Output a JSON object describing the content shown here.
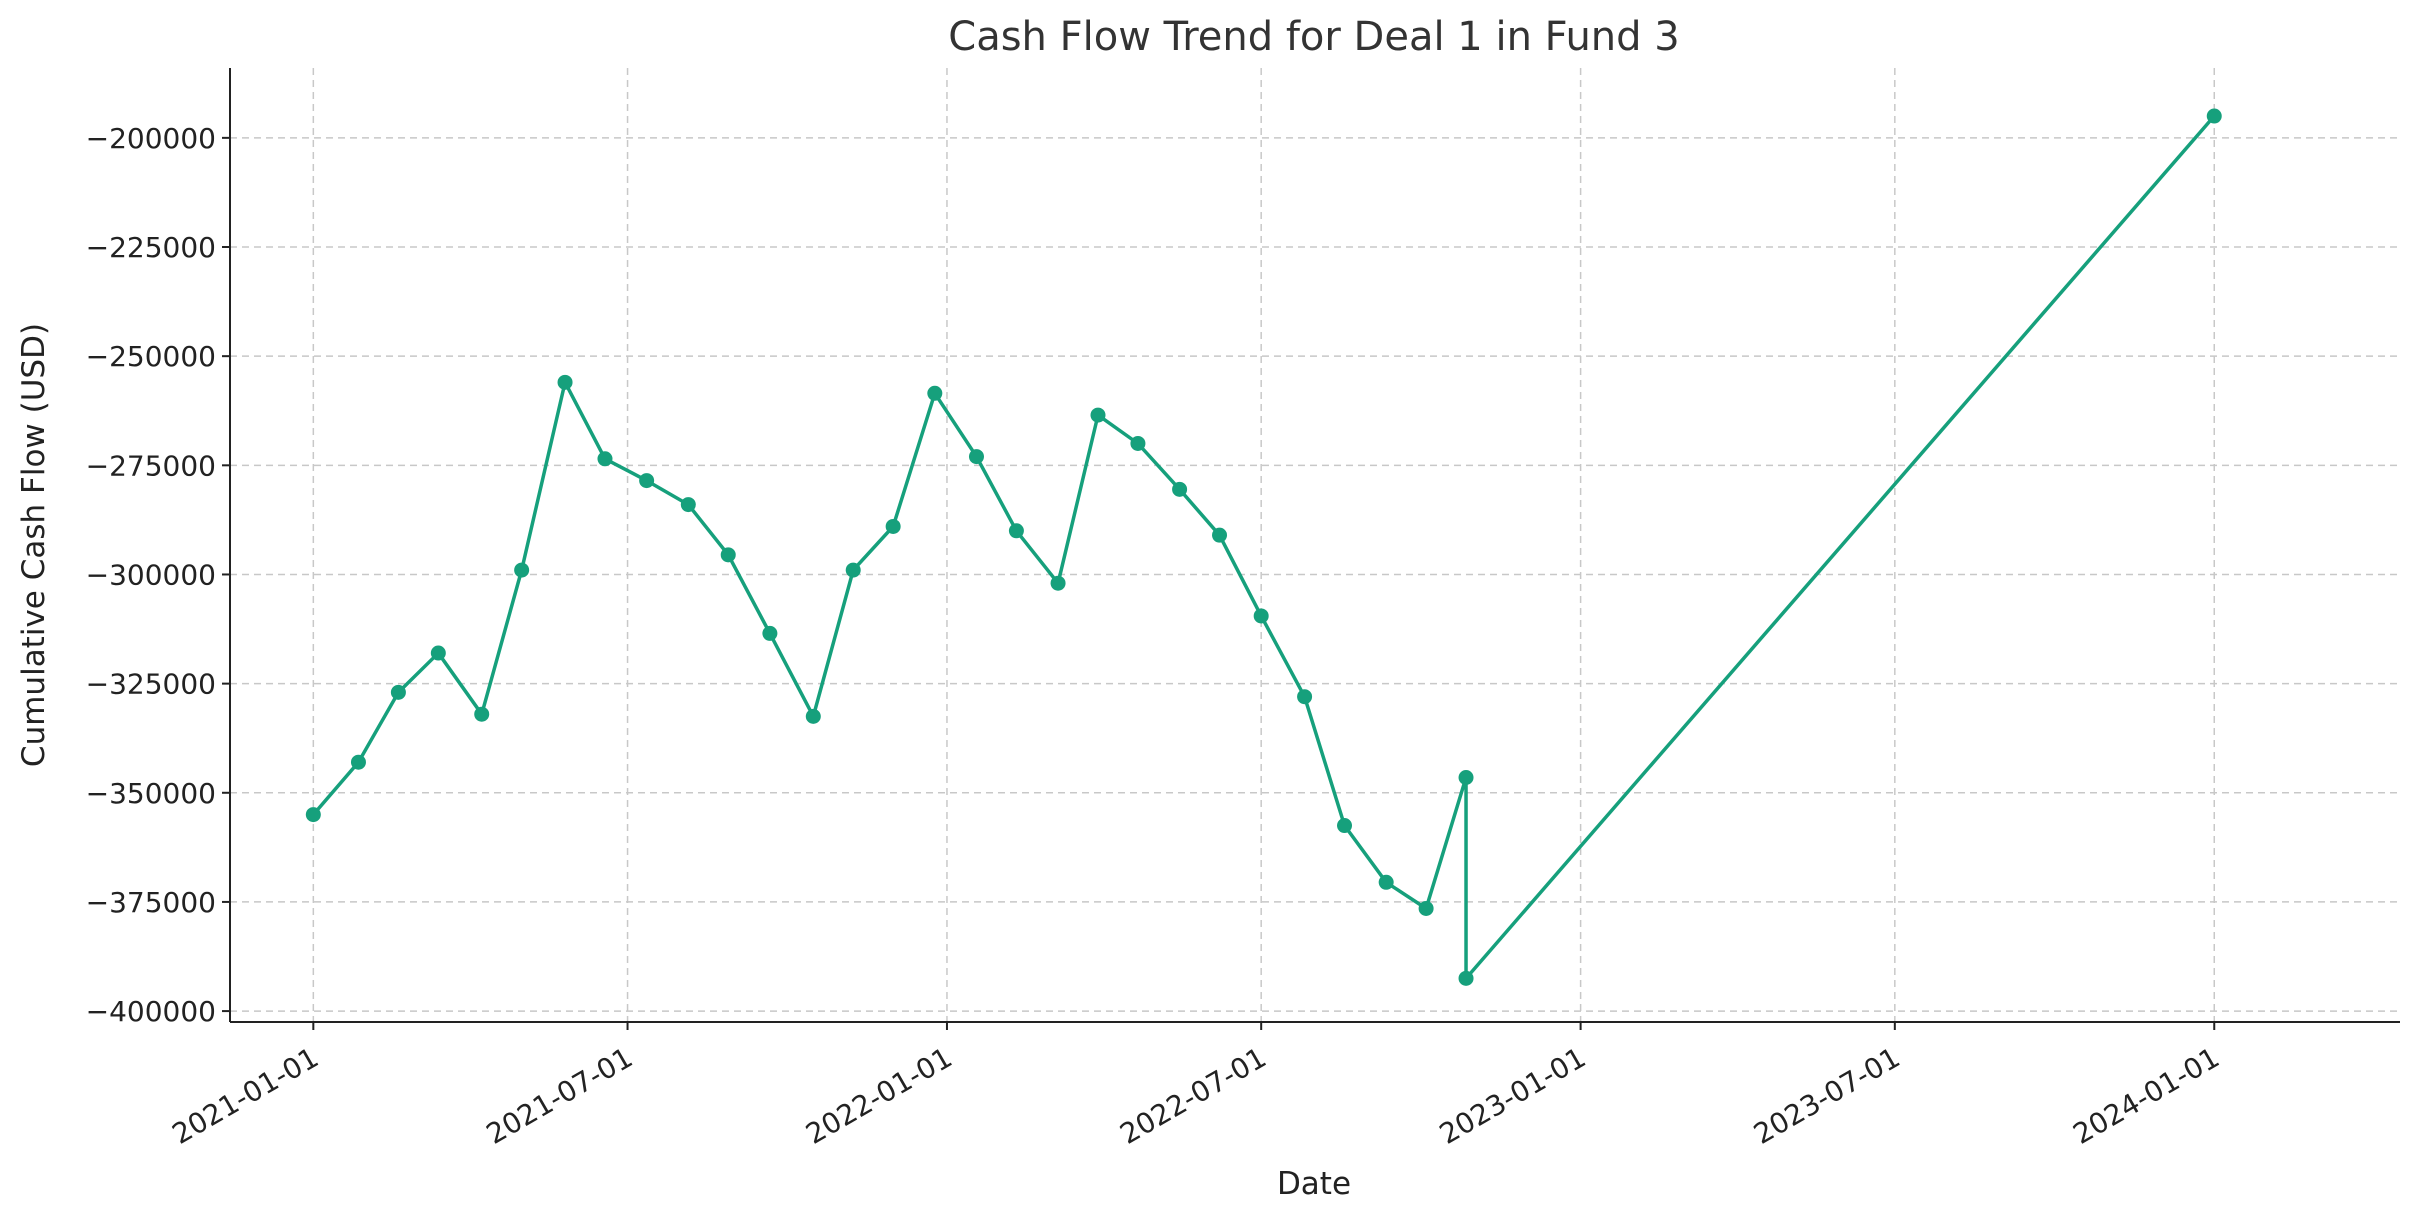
{
  "chart_data": {
    "type": "line",
    "title": "Cash Flow Trend for Deal 1 in Fund 3",
    "xlabel": "Date",
    "ylabel": "Cumulative Cash Flow (USD)",
    "xlim": [
      "2020-11-14",
      "2024-04-17"
    ],
    "ylim": [
      -402500,
      -184000
    ],
    "x_ticks": [
      "2021-01-01",
      "2021-07-01",
      "2022-01-01",
      "2022-07-01",
      "2023-01-01",
      "2023-07-01",
      "2024-01-01"
    ],
    "y_ticks": [
      -200000,
      -225000,
      -250000,
      -275000,
      -300000,
      -325000,
      -350000,
      -375000,
      -400000
    ],
    "y_tick_labels": [
      "−200000",
      "−225000",
      "−250000",
      "−275000",
      "−300000",
      "−325000",
      "−350000",
      "−375000",
      "−400000"
    ],
    "grid": true,
    "series": [
      {
        "color": "#16a07c",
        "points": [
          {
            "x": "2021-01-01",
            "y": -355000
          },
          {
            "x": "2021-01-27",
            "y": -343000
          },
          {
            "x": "2021-02-19",
            "y": -327000
          },
          {
            "x": "2021-03-14",
            "y": -318000
          },
          {
            "x": "2021-04-08",
            "y": -332000
          },
          {
            "x": "2021-05-01",
            "y": -299000
          },
          {
            "x": "2021-05-26",
            "y": -256000
          },
          {
            "x": "2021-06-18",
            "y": -273500
          },
          {
            "x": "2021-07-12",
            "y": -278500
          },
          {
            "x": "2021-08-05",
            "y": -284000
          },
          {
            "x": "2021-08-28",
            "y": -295500
          },
          {
            "x": "2021-09-21",
            "y": -313500
          },
          {
            "x": "2021-10-16",
            "y": -332500
          },
          {
            "x": "2021-11-08",
            "y": -299000
          },
          {
            "x": "2021-12-01",
            "y": -289000
          },
          {
            "x": "2021-12-25",
            "y": -258500
          },
          {
            "x": "2022-01-18",
            "y": -273000
          },
          {
            "x": "2022-02-10",
            "y": -290000
          },
          {
            "x": "2022-03-06",
            "y": -302000
          },
          {
            "x": "2022-03-29",
            "y": -263500
          },
          {
            "x": "2022-04-21",
            "y": -270000
          },
          {
            "x": "2022-05-15",
            "y": -280500
          },
          {
            "x": "2022-06-07",
            "y": -291000
          },
          {
            "x": "2022-07-01",
            "y": -309500
          },
          {
            "x": "2022-07-26",
            "y": -328000
          },
          {
            "x": "2022-08-18",
            "y": -357500
          },
          {
            "x": "2022-09-11",
            "y": -370500
          },
          {
            "x": "2022-10-04",
            "y": -376500
          },
          {
            "x": "2022-10-27",
            "y": -346500
          },
          {
            "x": "2022-10-27",
            "y": -392500
          },
          {
            "x": "2024-01-01",
            "y": -195000
          }
        ]
      }
    ]
  }
}
